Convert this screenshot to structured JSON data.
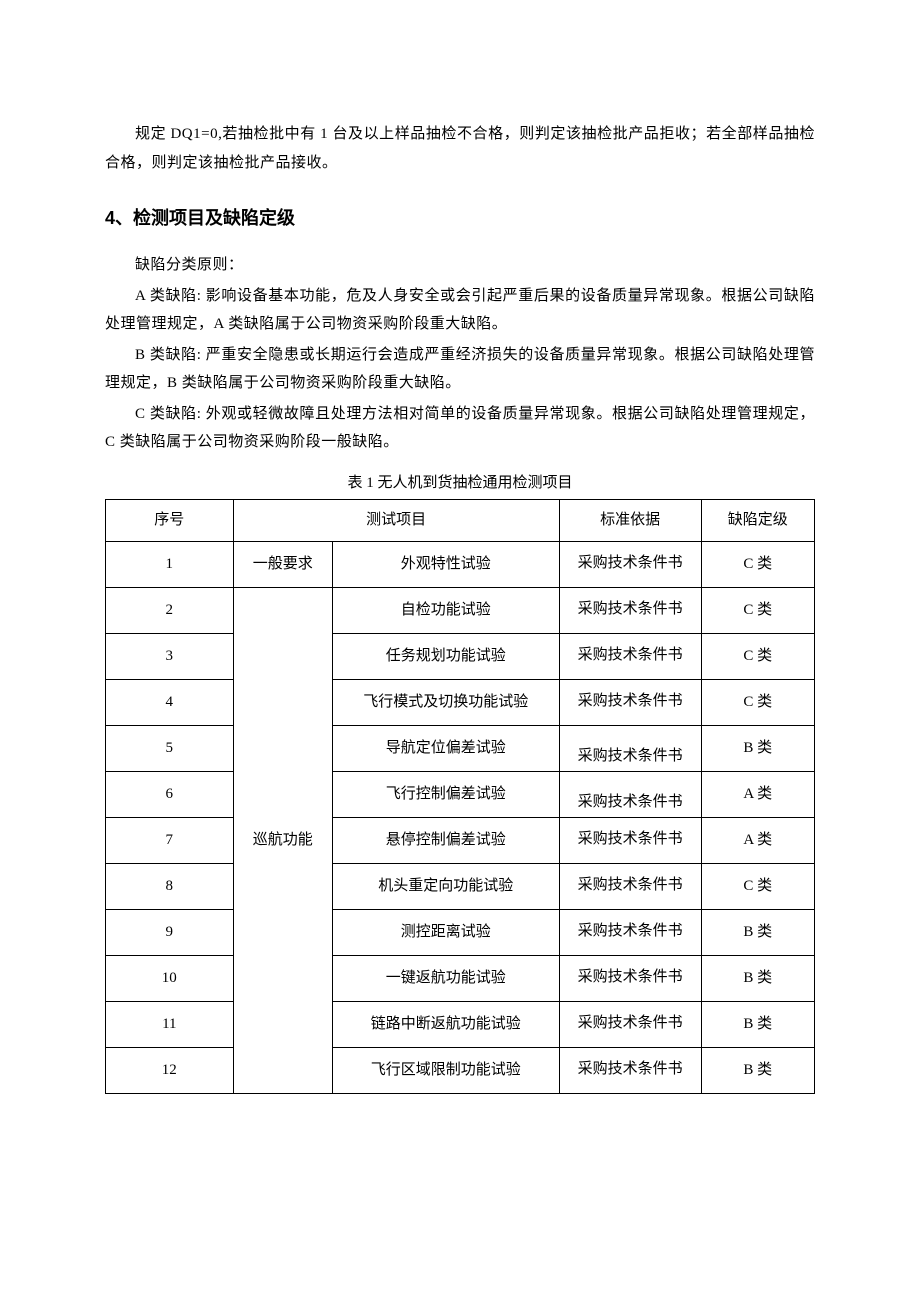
{
  "intro": {
    "p1": "规定 DQ1=0,若抽检批中有 1 台及以上样品抽检不合格，则判定该抽检批产品拒收；若全部样品抽检合格，则判定该抽检批产品接收。"
  },
  "heading": "4、检测项目及缺陷定级",
  "defect": {
    "principle": "缺陷分类原则：",
    "classA": "A 类缺陷: 影响设备基本功能，危及人身安全或会引起严重后果的设备质量异常现象。根据公司缺陷处理管理规定，A 类缺陷属于公司物资采购阶段重大缺陷。",
    "classB": "B 类缺陷: 严重安全隐患或长期运行会造成严重经济损失的设备质量异常现象。根据公司缺陷处理管理规定，B 类缺陷属于公司物资采购阶段重大缺陷。",
    "classC": "C 类缺陷: 外观或轻微故障且处理方法相对简单的设备质量异常现象。根据公司缺陷处理管理规定，C 类缺陷属于公司物资采购阶段一般缺陷。"
  },
  "table": {
    "caption": "表 1 无人机到货抽检通用检测项目",
    "headers": {
      "seq": "序号",
      "test_item": "测试项目",
      "basis": "标准依据",
      "level": "缺陷定级"
    },
    "category1": "一般要求",
    "category2": "巡航功能",
    "basis_text": "采购技术条件书",
    "rows": [
      {
        "seq": "1",
        "item": "外观特性试验",
        "level": "C 类"
      },
      {
        "seq": "2",
        "item": "自检功能试验",
        "level": "C 类"
      },
      {
        "seq": "3",
        "item": "任务规划功能试验",
        "level": "C 类"
      },
      {
        "seq": "4",
        "item": "飞行模式及切换功能试验",
        "level": "C 类"
      },
      {
        "seq": "5",
        "item": "导航定位偏差试验",
        "level": "B 类"
      },
      {
        "seq": "6",
        "item": "飞行控制偏差试验",
        "level": "A 类"
      },
      {
        "seq": "7",
        "item": "悬停控制偏差试验",
        "level": "A 类"
      },
      {
        "seq": "8",
        "item": "机头重定向功能试验",
        "level": "C 类"
      },
      {
        "seq": "9",
        "item": "测控距离试验",
        "level": "B 类"
      },
      {
        "seq": "10",
        "item": "一键返航功能试验",
        "level": "B 类"
      },
      {
        "seq": "11",
        "item": "链路中断返航功能试验",
        "level": "B 类"
      },
      {
        "seq": "12",
        "item": "飞行区域限制功能试验",
        "level": "B 类"
      }
    ]
  }
}
